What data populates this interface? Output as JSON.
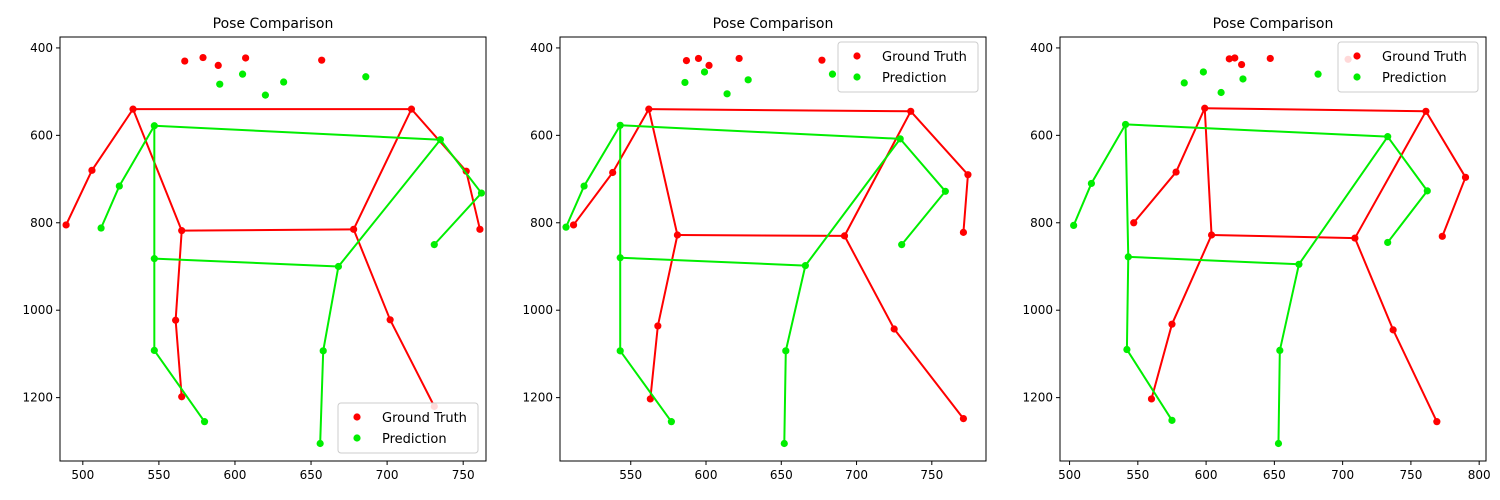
{
  "chart_data": [
    {
      "type": "scatter",
      "title": "Pose Comparison",
      "xlim": [
        485,
        765
      ],
      "ylim": [
        1345,
        375
      ],
      "y_inverted": true,
      "xticks": [
        500,
        550,
        600,
        650,
        700,
        750
      ],
      "yticks": [
        400,
        600,
        800,
        1000,
        1200
      ],
      "legend_position": "lower-right",
      "series": [
        {
          "name": "Ground Truth",
          "color": "#ff0000",
          "points": [
            [
              567,
              430
            ],
            [
              579,
              422
            ],
            [
              589,
              440
            ],
            [
              607,
              423
            ],
            [
              657,
              428
            ],
            [
              533,
              540
            ],
            [
              716,
              540
            ],
            [
              506,
              680
            ],
            [
              752,
              682
            ],
            [
              489,
              805
            ],
            [
              761,
              815
            ],
            [
              565,
              818
            ],
            [
              678,
              815
            ],
            [
              561,
              1023
            ],
            [
              702,
              1022
            ],
            [
              565,
              1198
            ],
            [
              731,
              1220
            ]
          ],
          "skeleton": [
            [
              5,
              6
            ],
            [
              5,
              7
            ],
            [
              7,
              9
            ],
            [
              6,
              8
            ],
            [
              8,
              10
            ],
            [
              5,
              11
            ],
            [
              6,
              12
            ],
            [
              11,
              12
            ],
            [
              11,
              13
            ],
            [
              13,
              15
            ],
            [
              12,
              14
            ],
            [
              14,
              16
            ]
          ]
        },
        {
          "name": "Prediction",
          "color": "#00ee00",
          "points": [
            [
              590,
              483
            ],
            [
              605,
              460
            ],
            [
              620,
              508
            ],
            [
              632,
              478
            ],
            [
              686,
              466
            ],
            [
              547,
              578
            ],
            [
              735,
              610
            ],
            [
              524,
              716
            ],
            [
              762,
              732
            ],
            [
              512,
              812
            ],
            [
              731,
              850
            ],
            [
              547,
              882
            ],
            [
              668,
              900
            ],
            [
              547,
              1092
            ],
            [
              658,
              1093
            ],
            [
              580,
              1255
            ],
            [
              656,
              1305
            ]
          ],
          "skeleton": [
            [
              5,
              6
            ],
            [
              5,
              7
            ],
            [
              7,
              9
            ],
            [
              6,
              8
            ],
            [
              8,
              10
            ],
            [
              5,
              11
            ],
            [
              6,
              12
            ],
            [
              11,
              12
            ],
            [
              11,
              13
            ],
            [
              13,
              15
            ],
            [
              12,
              14
            ],
            [
              14,
              16
            ]
          ]
        }
      ]
    },
    {
      "type": "scatter",
      "title": "Pose Comparison",
      "xlim": [
        503,
        786
      ],
      "ylim": [
        1345,
        375
      ],
      "y_inverted": true,
      "xticks": [
        550,
        600,
        650,
        700,
        750
      ],
      "yticks": [
        400,
        600,
        800,
        1000,
        1200
      ],
      "legend_position": "upper-right",
      "series": [
        {
          "name": "Ground Truth",
          "color": "#ff0000",
          "points": [
            [
              587,
              429
            ],
            [
              595,
              424
            ],
            [
              602,
              440
            ],
            [
              622,
              424
            ],
            [
              677,
              428
            ],
            [
              562,
              540
            ],
            [
              736,
              545
            ],
            [
              538,
              685
            ],
            [
              774,
              690
            ],
            [
              512,
              805
            ],
            [
              771,
              822
            ],
            [
              581,
              828
            ],
            [
              692,
              830
            ],
            [
              568,
              1036
            ],
            [
              725,
              1043
            ],
            [
              563,
              1203
            ],
            [
              771,
              1248
            ]
          ],
          "skeleton": [
            [
              5,
              6
            ],
            [
              5,
              7
            ],
            [
              7,
              9
            ],
            [
              6,
              8
            ],
            [
              8,
              10
            ],
            [
              5,
              11
            ],
            [
              6,
              12
            ],
            [
              11,
              12
            ],
            [
              11,
              13
            ],
            [
              13,
              15
            ],
            [
              12,
              14
            ],
            [
              14,
              16
            ]
          ]
        },
        {
          "name": "Prediction",
          "color": "#00ee00",
          "points": [
            [
              586,
              479
            ],
            [
              599,
              455
            ],
            [
              614,
              505
            ],
            [
              628,
              473
            ],
            [
              684,
              460
            ],
            [
              543,
              577
            ],
            [
              729,
              608
            ],
            [
              519,
              716
            ],
            [
              759,
              728
            ],
            [
              507,
              810
            ],
            [
              730,
              850
            ],
            [
              543,
              880
            ],
            [
              666,
              898
            ],
            [
              543,
              1093
            ],
            [
              653,
              1093
            ],
            [
              577,
              1255
            ],
            [
              652,
              1305
            ]
          ],
          "skeleton": [
            [
              5,
              6
            ],
            [
              5,
              7
            ],
            [
              7,
              9
            ],
            [
              6,
              8
            ],
            [
              8,
              10
            ],
            [
              5,
              11
            ],
            [
              6,
              12
            ],
            [
              11,
              12
            ],
            [
              11,
              13
            ],
            [
              13,
              15
            ],
            [
              12,
              14
            ],
            [
              14,
              16
            ]
          ]
        }
      ]
    },
    {
      "type": "scatter",
      "title": "Pose Comparison",
      "xlim": [
        493,
        805
      ],
      "ylim": [
        1345,
        375
      ],
      "y_inverted": true,
      "xticks": [
        500,
        550,
        600,
        650,
        700,
        750,
        800
      ],
      "yticks": [
        400,
        600,
        800,
        1000,
        1200
      ],
      "legend_position": "upper-right",
      "series": [
        {
          "name": "Ground Truth",
          "color": "#ff0000",
          "points": [
            [
              617,
              425
            ],
            [
              621,
              423
            ],
            [
              626,
              438
            ],
            [
              647,
              424
            ],
            [
              704,
              426
            ],
            [
              599,
              538
            ],
            [
              761,
              545
            ],
            [
              578,
              684
            ],
            [
              790,
              696
            ],
            [
              547,
              800
            ],
            [
              773,
              831
            ],
            [
              604,
              828
            ],
            [
              709,
              835
            ],
            [
              575,
              1032
            ],
            [
              737,
              1045
            ],
            [
              560,
              1203
            ],
            [
              769,
              1255
            ]
          ],
          "skeleton": [
            [
              5,
              6
            ],
            [
              5,
              7
            ],
            [
              7,
              9
            ],
            [
              6,
              8
            ],
            [
              8,
              10
            ],
            [
              5,
              11
            ],
            [
              6,
              12
            ],
            [
              11,
              12
            ],
            [
              11,
              13
            ],
            [
              13,
              15
            ],
            [
              12,
              14
            ],
            [
              14,
              16
            ]
          ]
        },
        {
          "name": "Prediction",
          "color": "#00ee00",
          "points": [
            [
              584,
              480
            ],
            [
              598,
              455
            ],
            [
              611,
              502
            ],
            [
              627,
              471
            ],
            [
              682,
              460
            ],
            [
              541,
              575
            ],
            [
              733,
              603
            ],
            [
              516,
              710
            ],
            [
              762,
              727
            ],
            [
              503,
              806
            ],
            [
              733,
              845
            ],
            [
              543,
              878
            ],
            [
              668,
              895
            ],
            [
              542,
              1090
            ],
            [
              654,
              1092
            ],
            [
              575,
              1252
            ],
            [
              653,
              1305
            ]
          ],
          "skeleton": [
            [
              5,
              6
            ],
            [
              5,
              7
            ],
            [
              7,
              9
            ],
            [
              6,
              8
            ],
            [
              8,
              10
            ],
            [
              5,
              11
            ],
            [
              6,
              12
            ],
            [
              11,
              12
            ],
            [
              11,
              13
            ],
            [
              13,
              15
            ],
            [
              12,
              14
            ],
            [
              14,
              16
            ]
          ]
        }
      ]
    }
  ]
}
